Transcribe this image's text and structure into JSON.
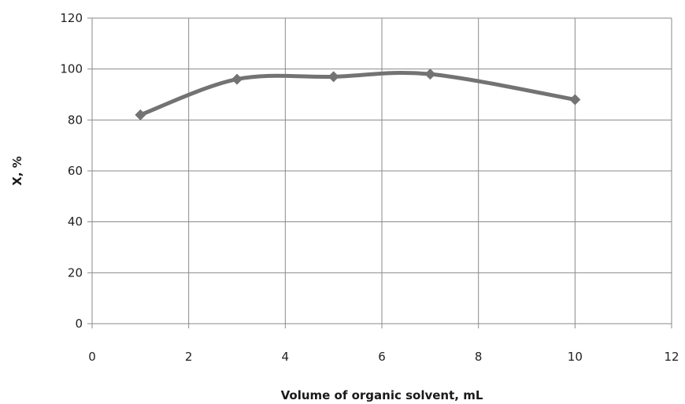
{
  "chart_data": {
    "type": "line",
    "title": "",
    "xlabel": "Volume of organic solvent, mL",
    "ylabel": "X, %",
    "xlim": [
      0,
      12
    ],
    "ylim": [
      0,
      120
    ],
    "xticks": [
      0,
      2,
      4,
      6,
      8,
      10,
      12
    ],
    "yticks": [
      0,
      20,
      40,
      60,
      80,
      100,
      120
    ],
    "grid": true,
    "legend": "none",
    "smooth": true,
    "series": [
      {
        "x": [
          1,
          3,
          5,
          7,
          10
        ],
        "values": [
          82,
          96,
          97,
          98,
          88
        ],
        "color": "#737373",
        "marker": "diamond"
      }
    ]
  }
}
